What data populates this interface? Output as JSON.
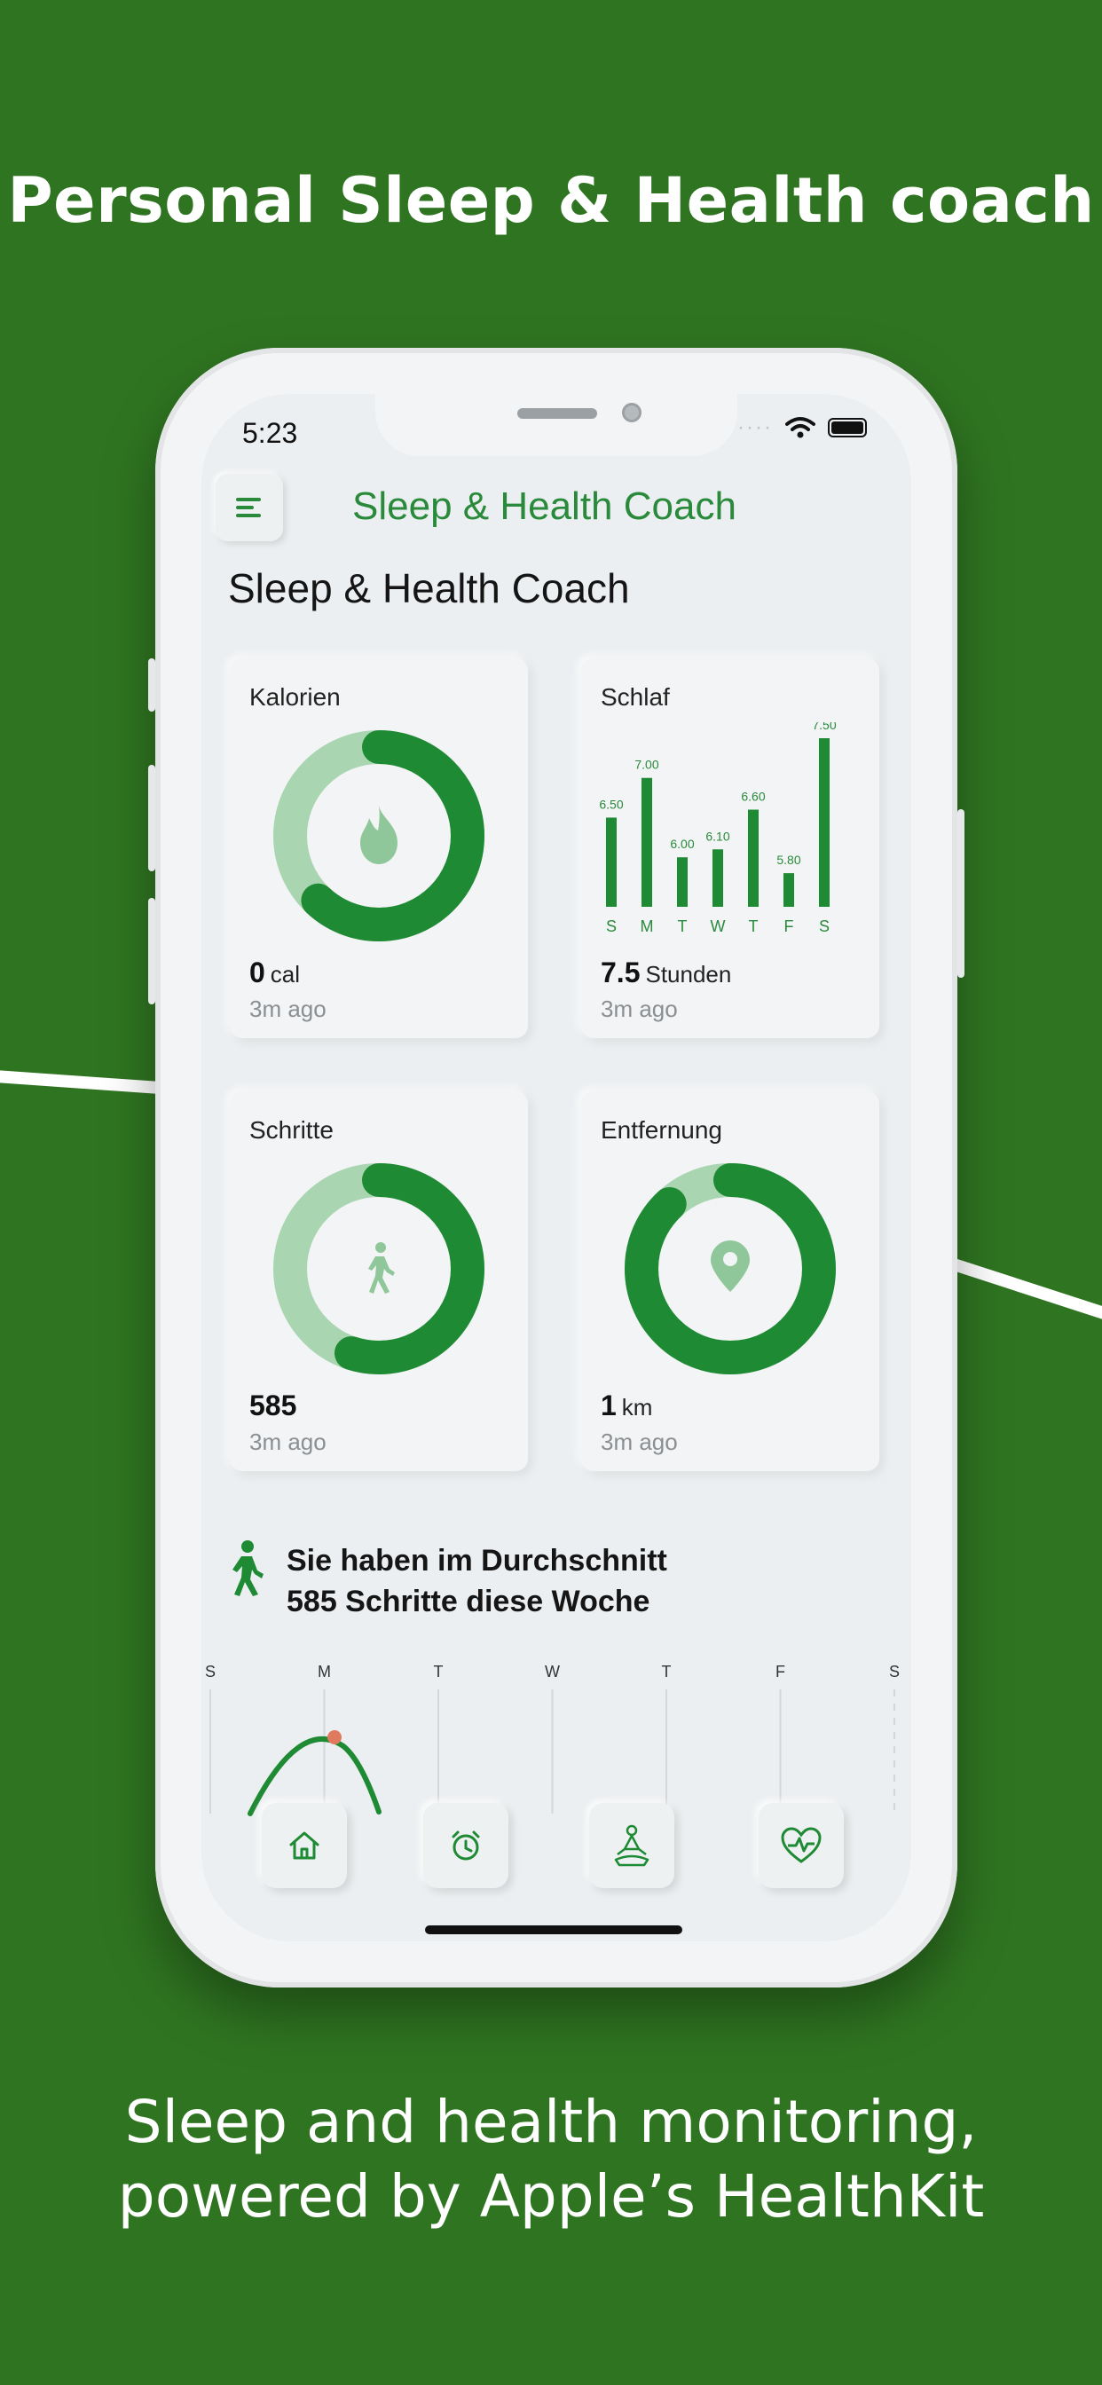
{
  "promo": {
    "headline": "Personal Sleep & Health coach",
    "footer_line1": "Sleep and health monitoring,",
    "footer_line2": "powered by Apple’s HealthKit"
  },
  "status_bar": {
    "time": "5:23"
  },
  "header": {
    "app_title": "Sleep & Health Coach",
    "page_title": "Sleep & Health Coach"
  },
  "cards": {
    "calories": {
      "label": "Kalorien",
      "value": "0",
      "unit": "cal",
      "updated": "3m ago",
      "ring_fraction": 0.62
    },
    "sleep": {
      "label": "Schlaf",
      "value": "7.5",
      "unit": "Stunden",
      "updated": "3m ago"
    },
    "steps": {
      "label": "Schritte",
      "value": "585",
      "updated": "3m ago",
      "ring_fraction": 0.55
    },
    "distance": {
      "label": "Entfernung",
      "value": "1",
      "unit": "km",
      "updated": "3m ago",
      "ring_fraction": 0.88
    }
  },
  "chart_data": {
    "type": "bar",
    "categories": [
      "S",
      "M",
      "T",
      "W",
      "T",
      "F",
      "S"
    ],
    "values": [
      6.5,
      7.0,
      6.0,
      6.1,
      6.6,
      5.8,
      7.5
    ],
    "value_labels": [
      "6.50",
      "7.00",
      "6.00",
      "6.10",
      "6.60",
      "5.80",
      "7.50"
    ],
    "ylim": [
      5.6,
      7.5
    ]
  },
  "summary": {
    "line1": "Sie haben im Durchschnitt",
    "line2": "585 Schritte diese Woche"
  },
  "week_chart": {
    "days": [
      "S",
      "M",
      "T",
      "W",
      "T",
      "F",
      "S"
    ]
  },
  "colors": {
    "accent": "#1e8a34",
    "accent_light": "#a9d5b0",
    "background": "#2f7521"
  },
  "nav": {
    "items": [
      {
        "icon": "home-icon"
      },
      {
        "icon": "alarm-clock-icon"
      },
      {
        "icon": "meditation-icon"
      },
      {
        "icon": "heart-rate-icon"
      }
    ]
  }
}
